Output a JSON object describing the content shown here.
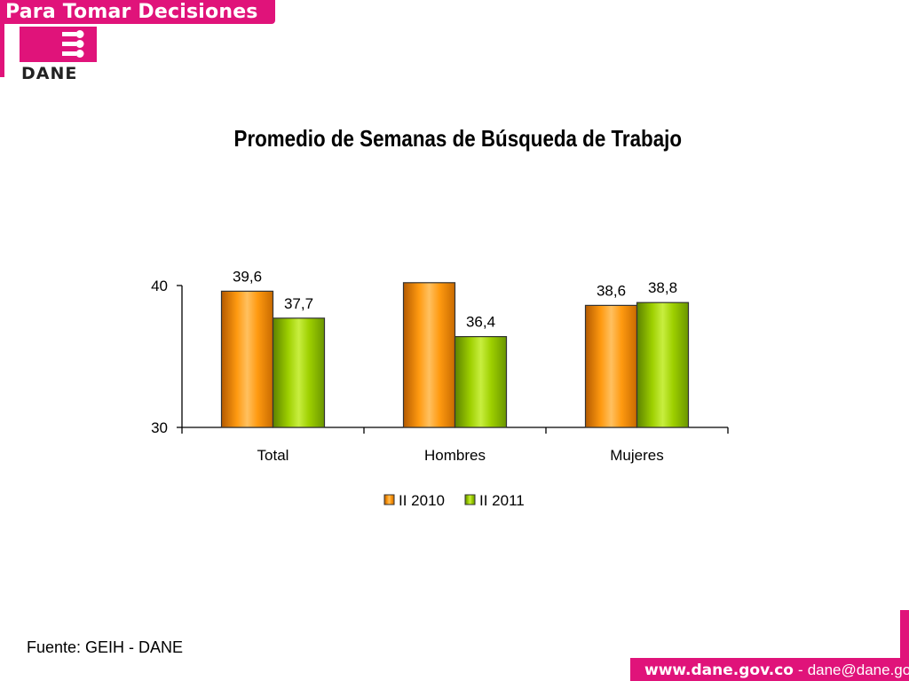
{
  "header": {
    "banner_text": "Para Tomar Decisiones",
    "logo_text": "DANE",
    "brand_color": "#e0137a"
  },
  "chart_data": {
    "type": "bar",
    "title": "Promedio de Semanas de Búsqueda de Trabajo",
    "xlabel": "",
    "ylabel": "",
    "categories": [
      "Total",
      "Hombres",
      "Mujeres"
    ],
    "series": [
      {
        "name": "II 2010",
        "values": [
          39.6,
          40.2,
          38.6
        ],
        "labels": [
          "39,6",
          "",
          "38,6"
        ],
        "color": "#ff8c00"
      },
      {
        "name": "II 2011",
        "values": [
          37.7,
          36.4,
          38.8
        ],
        "labels": [
          "37,7",
          "36,4",
          "38,8"
        ],
        "color": "#99cc00"
      }
    ],
    "ylim": [
      30,
      40
    ],
    "yticks": [
      "30",
      "40"
    ],
    "legend_position": "bottom",
    "grid": false
  },
  "footer": {
    "source": "Fuente: GEIH - DANE",
    "website": "www.dane.gov.co",
    "separator": "-",
    "email": "dane@dane.gov.co"
  }
}
